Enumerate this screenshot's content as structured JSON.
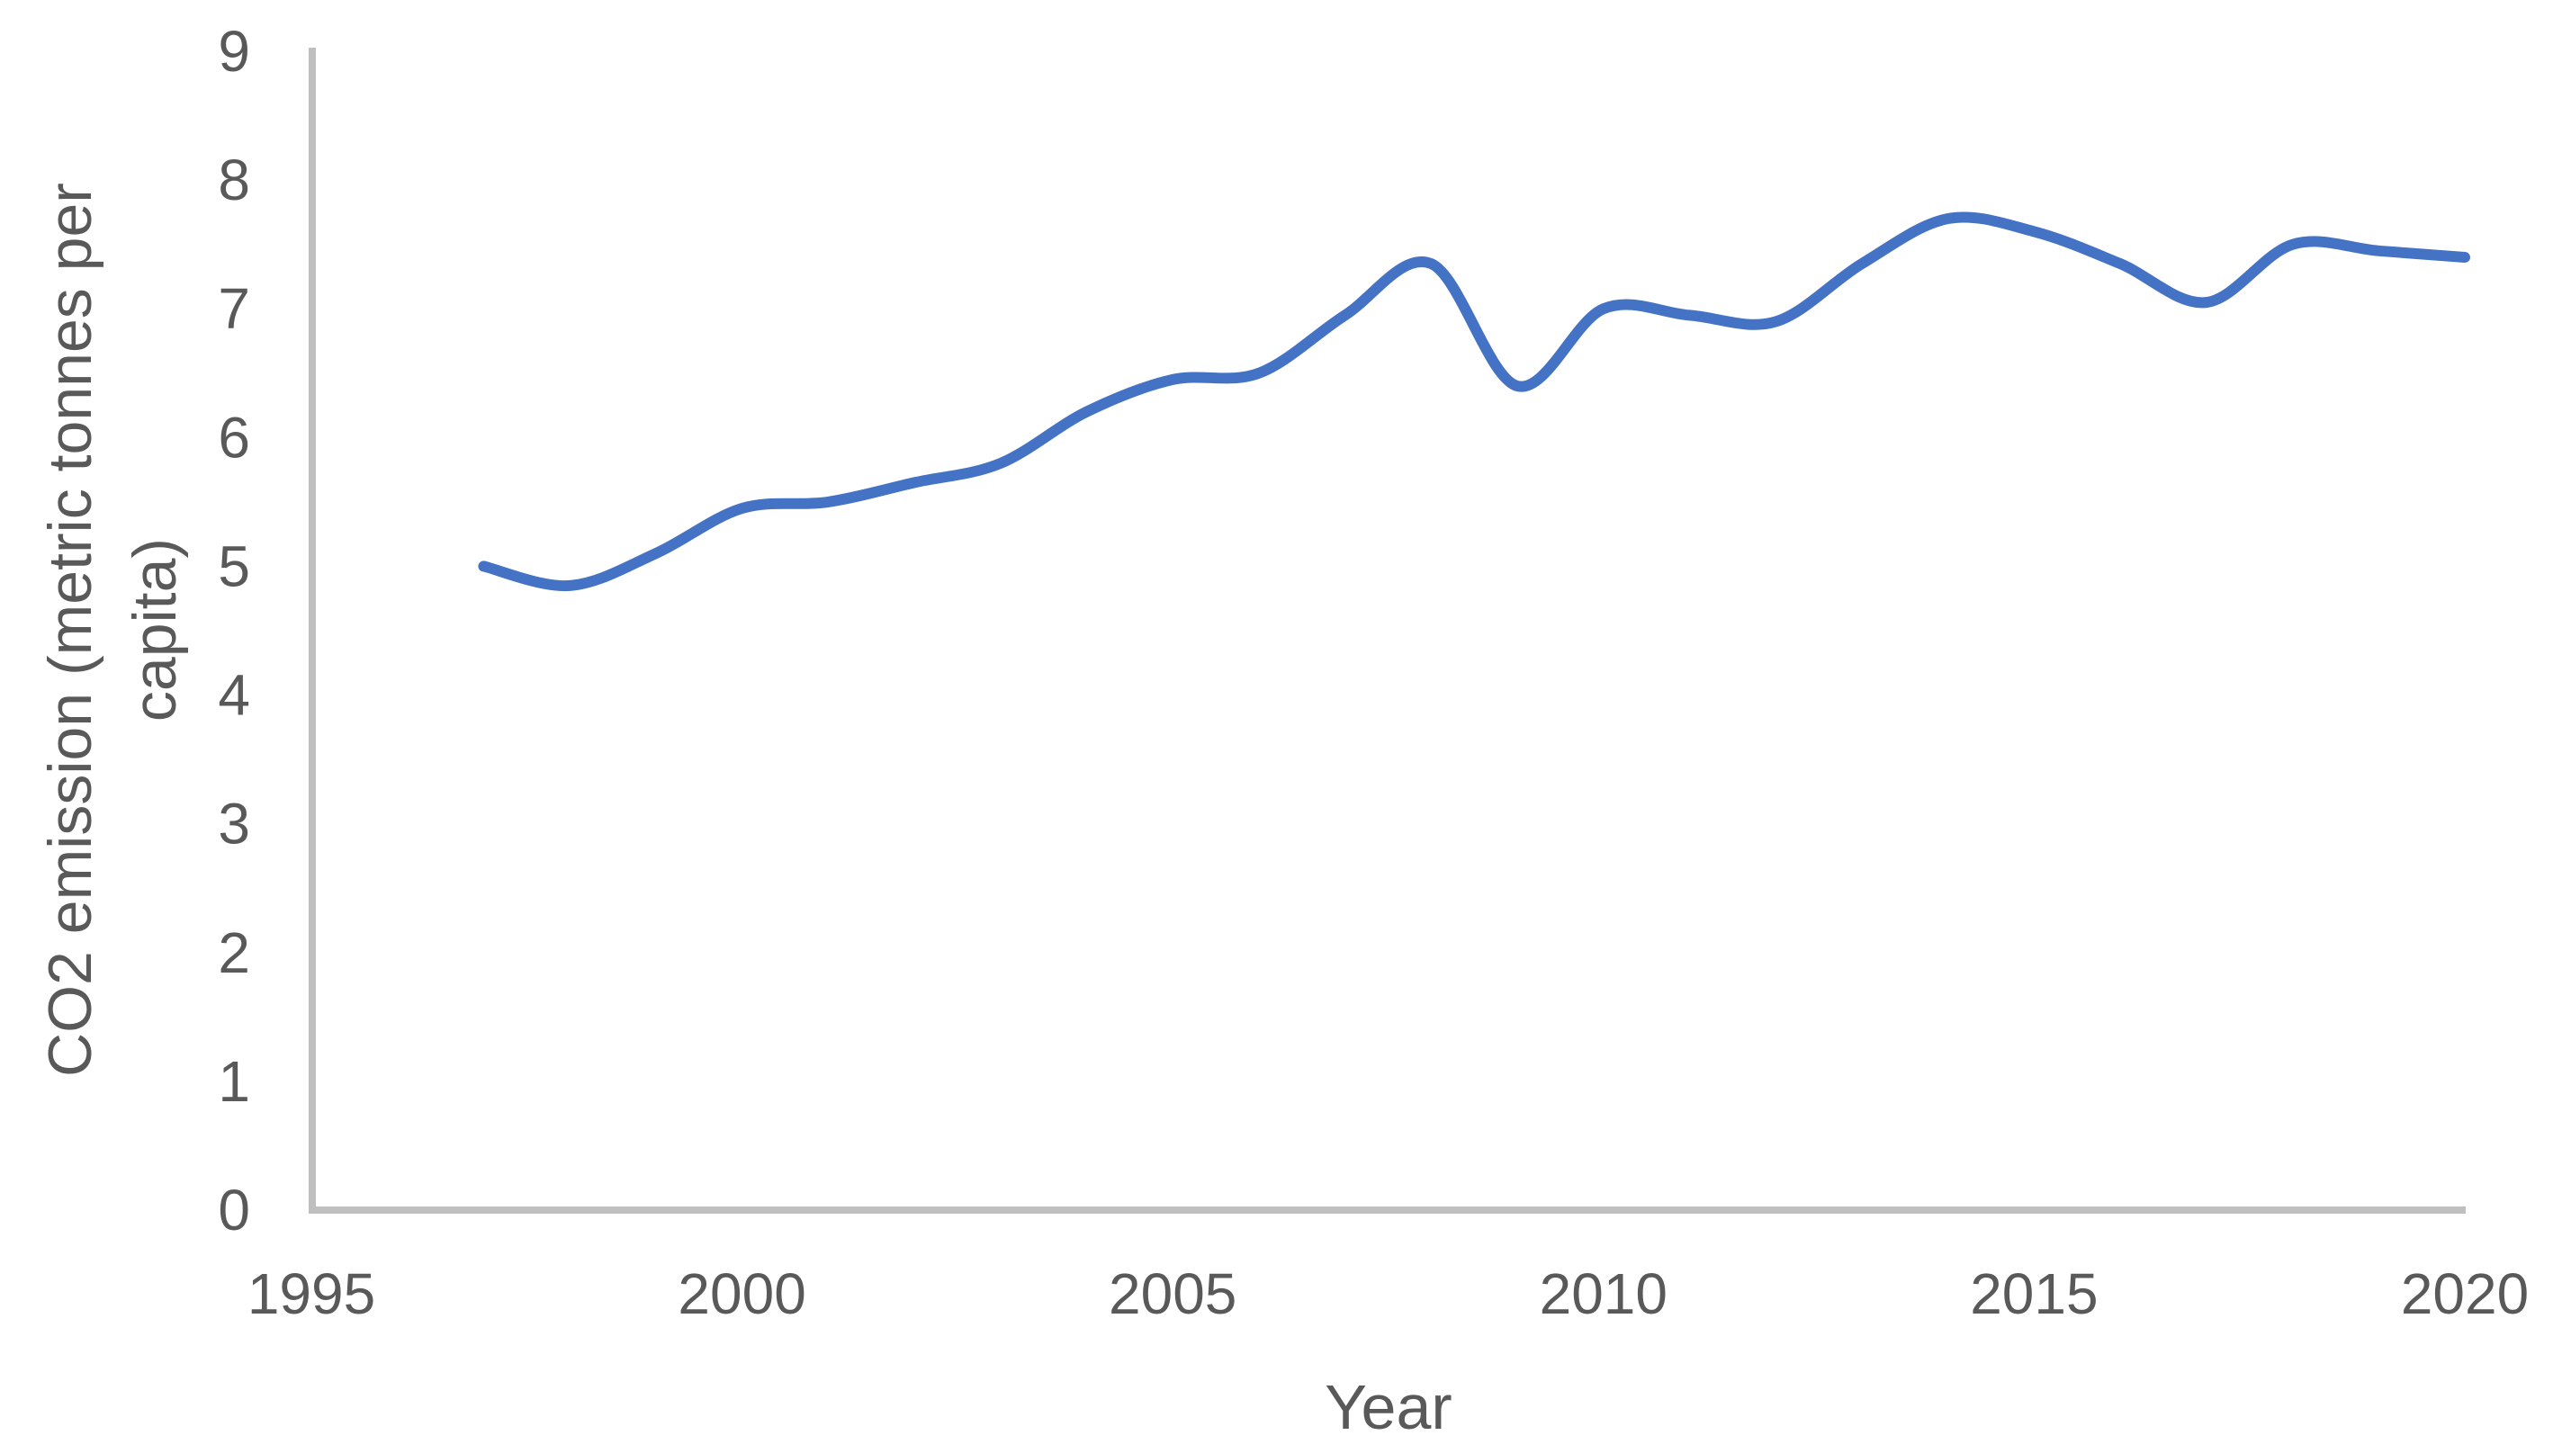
{
  "chart_data": {
    "type": "line",
    "title": "",
    "xlabel": "Year",
    "ylabel": "CO2 emission (metric tonnes per capita)",
    "ylabel_lines": [
      "CO2 emission (metric tonnes per",
      "capita)"
    ],
    "series": [
      {
        "name": "CO2 emission (metric tonnes per capita)",
        "x": [
          1997,
          1998,
          1999,
          2000,
          2001,
          2002,
          2003,
          2004,
          2005,
          2006,
          2007,
          2008,
          2009,
          2010,
          2011,
          2012,
          2013,
          2014,
          2015,
          2016,
          2017,
          2018,
          2019,
          2020
        ],
        "values": [
          5.0,
          4.85,
          5.1,
          5.45,
          5.5,
          5.65,
          5.8,
          6.2,
          6.45,
          6.5,
          6.95,
          7.35,
          6.4,
          7.0,
          6.95,
          6.9,
          7.35,
          7.7,
          7.6,
          7.35,
          7.05,
          7.5,
          7.45,
          7.4
        ]
      }
    ],
    "xlim": [
      1995,
      2020
    ],
    "ylim": [
      0,
      9
    ],
    "x_ticks": [
      "1995",
      "2000",
      "2005",
      "2010",
      "2015",
      "2020"
    ],
    "y_ticks": [
      "0",
      "1",
      "2",
      "3",
      "4",
      "5",
      "6",
      "7",
      "8",
      "9"
    ],
    "grid": false,
    "legend": "none",
    "line_style": "smooth",
    "colors": {
      "line": "#4472C4",
      "axis": "#BFBFBF",
      "text": "#595959",
      "background": "#FFFFFF"
    }
  }
}
